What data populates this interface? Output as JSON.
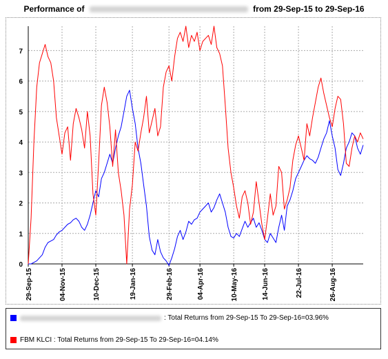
{
  "title": {
    "prefix": "Performance of",
    "fund_name": "PUBLIC SENSITIVE GROWTH EQUITY FUND",
    "suffix": "from 29-Sep-15 to 29-Sep-16"
  },
  "legend": {
    "fund": {
      "color": "#0000ff",
      "name": "PUBLIC SENSITIVE GROWTH EQUITY FUND",
      "text": ": Total Returns from 29-Sep-15 To 29-Sep-16=03.96%"
    },
    "index": {
      "color": "#ff0000",
      "text": "FBM KLCI : Total Returns from 29-Sep-15 To 29-Sep-16=04.14%"
    }
  },
  "chart_data": {
    "type": "line",
    "title": "",
    "xlabel": "",
    "ylabel": "",
    "ylim": [
      0,
      7.8
    ],
    "y_ticks": [
      0,
      1,
      2,
      3,
      4,
      5,
      6,
      7
    ],
    "x_tick_labels": [
      "29-Sep-15",
      "04-Nov-15",
      "10-Dec-15",
      "19-Jan-16",
      "29-Feb-16",
      "04-Apr-16",
      "10-May-16",
      "14-Jun-16",
      "22-Jul-16",
      "26-Aug-16"
    ],
    "x_tick_index": [
      0,
      12,
      24,
      37,
      50,
      61,
      73,
      84,
      96,
      108
    ],
    "grid": "dotted",
    "x": [
      "29-Sep-15",
      "02-Oct-15",
      "05-Oct-15",
      "08-Oct-15",
      "11-Oct-15",
      "14-Oct-15",
      "17-Oct-15",
      "20-Oct-15",
      "23-Oct-15",
      "26-Oct-15",
      "29-Oct-15",
      "01-Nov-15",
      "04-Nov-15",
      "07-Nov-15",
      "10-Nov-15",
      "13-Nov-15",
      "16-Nov-15",
      "19-Nov-15",
      "22-Nov-15",
      "25-Nov-15",
      "28-Nov-15",
      "01-Dec-15",
      "04-Dec-15",
      "07-Dec-15",
      "10-Dec-15",
      "13-Dec-15",
      "16-Dec-15",
      "19-Dec-15",
      "22-Dec-15",
      "25-Dec-15",
      "28-Dec-15",
      "31-Dec-15",
      "03-Jan-16",
      "06-Jan-16",
      "09-Jan-16",
      "12-Jan-16",
      "15-Jan-16",
      "19-Jan-16",
      "22-Jan-16",
      "25-Jan-16",
      "28-Jan-16",
      "31-Jan-16",
      "03-Feb-16",
      "06-Feb-16",
      "09-Feb-16",
      "12-Feb-16",
      "15-Feb-16",
      "18-Feb-16",
      "21-Feb-16",
      "24-Feb-16",
      "29-Feb-16",
      "03-Mar-16",
      "06-Mar-16",
      "09-Mar-16",
      "12-Mar-16",
      "15-Mar-16",
      "18-Mar-16",
      "21-Mar-16",
      "24-Mar-16",
      "27-Mar-16",
      "30-Mar-16",
      "04-Apr-16",
      "07-Apr-16",
      "10-Apr-16",
      "13-Apr-16",
      "16-Apr-16",
      "19-Apr-16",
      "22-Apr-16",
      "25-Apr-16",
      "28-Apr-16",
      "01-May-16",
      "04-May-16",
      "07-May-16",
      "10-May-16",
      "13-May-16",
      "16-May-16",
      "19-May-16",
      "22-May-16",
      "25-May-16",
      "28-May-16",
      "31-May-16",
      "03-Jun-16",
      "06-Jun-16",
      "09-Jun-16",
      "14-Jun-16",
      "17-Jun-16",
      "20-Jun-16",
      "23-Jun-16",
      "26-Jun-16",
      "29-Jun-16",
      "02-Jul-16",
      "05-Jul-16",
      "08-Jul-16",
      "11-Jul-16",
      "14-Jul-16",
      "17-Jul-16",
      "22-Jul-16",
      "25-Jul-16",
      "28-Jul-16",
      "31-Jul-16",
      "03-Aug-16",
      "06-Aug-16",
      "09-Aug-16",
      "12-Aug-16",
      "15-Aug-16",
      "18-Aug-16",
      "21-Aug-16",
      "24-Aug-16",
      "26-Aug-16",
      "29-Aug-16",
      "01-Sep-16",
      "04-Sep-16",
      "07-Sep-16",
      "10-Sep-16",
      "13-Sep-16",
      "16-Sep-16",
      "19-Sep-16",
      "22-Sep-16",
      "25-Sep-16",
      "29-Sep-16"
    ],
    "series": [
      {
        "name": "PUBLIC SENSITIVE GROWTH EQUITY FUND",
        "color": "#0000ff",
        "values": [
          0.0,
          0.0,
          0.05,
          0.1,
          0.2,
          0.3,
          0.55,
          0.7,
          0.75,
          0.8,
          0.95,
          1.05,
          1.1,
          1.2,
          1.3,
          1.35,
          1.45,
          1.5,
          1.4,
          1.2,
          1.1,
          1.3,
          1.6,
          2.0,
          2.4,
          2.2,
          2.8,
          3.0,
          3.3,
          3.6,
          3.3,
          3.8,
          4.2,
          4.5,
          5.0,
          5.5,
          5.7,
          5.1,
          4.6,
          3.8,
          3.3,
          2.6,
          1.9,
          0.9,
          0.45,
          0.3,
          0.8,
          0.4,
          0.2,
          0.1,
          -0.05,
          0.2,
          0.5,
          0.9,
          1.1,
          0.8,
          1.05,
          1.4,
          1.3,
          1.45,
          1.5,
          1.7,
          1.8,
          1.9,
          2.0,
          1.7,
          1.85,
          2.1,
          2.3,
          2.0,
          1.7,
          1.2,
          0.9,
          0.85,
          1.0,
          0.9,
          1.15,
          1.4,
          1.2,
          1.35,
          1.5,
          1.2,
          1.35,
          1.1,
          0.8,
          0.7,
          1.0,
          0.85,
          0.7,
          1.2,
          1.6,
          1.1,
          1.9,
          2.1,
          2.4,
          2.8,
          3.0,
          3.2,
          3.4,
          3.55,
          3.45,
          3.4,
          3.3,
          3.5,
          3.8,
          4.1,
          4.3,
          4.7,
          4.2,
          3.8,
          3.1,
          2.9,
          3.3,
          3.8,
          4.0,
          4.3,
          4.2,
          3.8,
          3.6,
          3.9
        ]
      },
      {
        "name": "FBM KLCI",
        "color": "#ff0000",
        "values": [
          0.0,
          1.5,
          4.0,
          5.8,
          6.6,
          6.9,
          7.2,
          6.8,
          6.6,
          6.0,
          4.8,
          4.2,
          3.6,
          4.3,
          4.5,
          3.4,
          4.6,
          5.1,
          4.8,
          4.4,
          3.8,
          5.0,
          4.2,
          2.3,
          1.6,
          3.3,
          5.2,
          5.8,
          5.3,
          4.5,
          3.2,
          4.4,
          3.0,
          2.4,
          1.6,
          0.0,
          1.8,
          2.6,
          4.0,
          3.7,
          4.3,
          4.8,
          5.5,
          4.3,
          4.7,
          5.1,
          4.2,
          4.5,
          5.8,
          6.3,
          6.5,
          6.0,
          6.8,
          7.4,
          7.6,
          7.3,
          7.8,
          7.1,
          7.5,
          7.3,
          7.6,
          7.0,
          7.3,
          7.4,
          7.5,
          7.2,
          7.8,
          7.1,
          6.9,
          6.5,
          5.2,
          3.8,
          3.0,
          2.5,
          1.9,
          1.5,
          2.2,
          2.4,
          2.0,
          1.3,
          1.7,
          2.7,
          2.0,
          1.3,
          0.8,
          1.5,
          2.3,
          1.6,
          1.9,
          3.2,
          3.0,
          1.8,
          2.1,
          2.5,
          3.4,
          3.9,
          4.2,
          3.8,
          3.4,
          4.6,
          4.2,
          4.8,
          5.3,
          5.8,
          6.1,
          5.6,
          5.2,
          4.8,
          4.5,
          5.1,
          5.5,
          5.4,
          4.6,
          3.3,
          3.2,
          3.8,
          4.2,
          4.0,
          4.3,
          4.1
        ]
      }
    ]
  }
}
